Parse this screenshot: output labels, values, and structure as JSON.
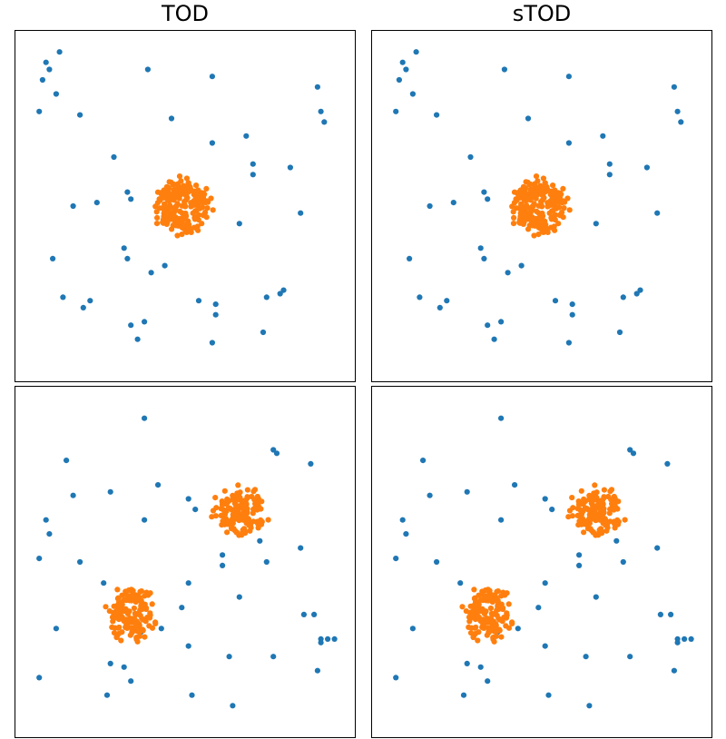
{
  "columns": [
    "TOD",
    "sTOD"
  ],
  "colors": {
    "inlier": "#1f77b4",
    "outlier": "#ff7f0e"
  },
  "chart_data": [
    {
      "type": "scatter",
      "title": "TOD",
      "xlim": [
        0,
        1
      ],
      "ylim": [
        0,
        1
      ],
      "grid": false,
      "outlier_clusters": [
        {
          "center": [
            0.49,
            0.5
          ],
          "radius": 0.095,
          "count": 220,
          "seed": 11
        }
      ],
      "series": [
        {
          "role": "inlier",
          "color": "#1f77b4",
          "x": [
            0.09,
            0.13,
            0.1,
            0.08,
            0.12,
            0.07,
            0.19,
            0.39,
            0.58,
            0.89,
            0.9,
            0.91,
            0.46,
            0.58,
            0.68,
            0.29,
            0.7,
            0.7,
            0.81,
            0.33,
            0.34,
            0.24,
            0.17,
            0.84,
            0.66,
            0.32,
            0.33,
            0.4,
            0.44,
            0.11,
            0.78,
            0.14,
            0.22,
            0.2,
            0.54,
            0.59,
            0.59,
            0.74,
            0.79,
            0.34,
            0.38,
            0.36,
            0.58,
            0.73
          ],
          "y": [
            0.91,
            0.94,
            0.89,
            0.86,
            0.82,
            0.77,
            0.76,
            0.89,
            0.87,
            0.84,
            0.77,
            0.74,
            0.75,
            0.68,
            0.7,
            0.64,
            0.62,
            0.59,
            0.61,
            0.54,
            0.52,
            0.51,
            0.5,
            0.48,
            0.45,
            0.38,
            0.35,
            0.31,
            0.33,
            0.35,
            0.25,
            0.24,
            0.23,
            0.21,
            0.23,
            0.22,
            0.19,
            0.24,
            0.26,
            0.16,
            0.17,
            0.12,
            0.11,
            0.14
          ]
        }
      ]
    },
    {
      "type": "scatter",
      "title": "sTOD",
      "xlim": [
        0,
        1
      ],
      "ylim": [
        0,
        1
      ],
      "grid": false,
      "outlier_clusters": [
        {
          "center": [
            0.49,
            0.5
          ],
          "radius": 0.095,
          "count": 220,
          "seed": 11
        }
      ],
      "series": [
        {
          "role": "inlier",
          "color": "#1f77b4",
          "x": [
            0.09,
            0.13,
            0.1,
            0.08,
            0.12,
            0.07,
            0.19,
            0.39,
            0.58,
            0.89,
            0.9,
            0.91,
            0.46,
            0.58,
            0.68,
            0.29,
            0.7,
            0.7,
            0.81,
            0.33,
            0.34,
            0.24,
            0.17,
            0.84,
            0.66,
            0.32,
            0.33,
            0.4,
            0.44,
            0.11,
            0.78,
            0.14,
            0.22,
            0.2,
            0.54,
            0.59,
            0.59,
            0.74,
            0.79,
            0.34,
            0.38,
            0.36,
            0.58,
            0.73
          ],
          "y": [
            0.91,
            0.94,
            0.89,
            0.86,
            0.82,
            0.77,
            0.76,
            0.89,
            0.87,
            0.84,
            0.77,
            0.74,
            0.75,
            0.68,
            0.7,
            0.64,
            0.62,
            0.59,
            0.61,
            0.54,
            0.52,
            0.51,
            0.5,
            0.48,
            0.45,
            0.38,
            0.35,
            0.31,
            0.33,
            0.35,
            0.25,
            0.24,
            0.23,
            0.21,
            0.23,
            0.22,
            0.19,
            0.24,
            0.26,
            0.16,
            0.17,
            0.12,
            0.11,
            0.14
          ]
        }
      ]
    },
    {
      "type": "scatter",
      "title": "",
      "xlim": [
        0,
        1
      ],
      "ylim": [
        0,
        1
      ],
      "grid": false,
      "outlier_clusters": [
        {
          "center": [
            0.66,
            0.64
          ],
          "radius": 0.09,
          "count": 150,
          "seed": 23
        },
        {
          "center": [
            0.34,
            0.35
          ],
          "radius": 0.09,
          "count": 150,
          "seed": 37
        }
      ],
      "series": [
        {
          "role": "inlier",
          "color": "#1f77b4",
          "x": [
            0.38,
            0.15,
            0.76,
            0.77,
            0.87,
            0.17,
            0.28,
            0.42,
            0.51,
            0.53,
            0.09,
            0.1,
            0.38,
            0.07,
            0.19,
            0.72,
            0.61,
            0.61,
            0.84,
            0.74,
            0.26,
            0.51,
            0.66,
            0.49,
            0.88,
            0.85,
            0.12,
            0.51,
            0.92,
            0.94,
            0.9,
            0.9,
            0.76,
            0.63,
            0.07,
            0.32,
            0.28,
            0.34,
            0.27,
            0.89,
            0.43,
            0.37,
            0.64,
            0.52
          ],
          "y": [
            0.91,
            0.79,
            0.82,
            0.81,
            0.78,
            0.69,
            0.7,
            0.72,
            0.68,
            0.65,
            0.62,
            0.58,
            0.62,
            0.51,
            0.5,
            0.56,
            0.52,
            0.49,
            0.54,
            0.5,
            0.44,
            0.44,
            0.4,
            0.37,
            0.35,
            0.35,
            0.31,
            0.26,
            0.28,
            0.28,
            0.28,
            0.27,
            0.23,
            0.23,
            0.17,
            0.2,
            0.21,
            0.16,
            0.12,
            0.19,
            0.31,
            0.3,
            0.09,
            0.12
          ]
        }
      ]
    },
    {
      "type": "scatter",
      "title": "",
      "xlim": [
        0,
        1
      ],
      "ylim": [
        0,
        1
      ],
      "grid": false,
      "outlier_clusters": [
        {
          "center": [
            0.66,
            0.64
          ],
          "radius": 0.09,
          "count": 150,
          "seed": 23
        },
        {
          "center": [
            0.34,
            0.35
          ],
          "radius": 0.09,
          "count": 150,
          "seed": 37
        }
      ],
      "series": [
        {
          "role": "inlier",
          "color": "#1f77b4",
          "x": [
            0.38,
            0.15,
            0.76,
            0.77,
            0.87,
            0.17,
            0.28,
            0.42,
            0.51,
            0.53,
            0.09,
            0.1,
            0.38,
            0.07,
            0.19,
            0.72,
            0.61,
            0.61,
            0.84,
            0.74,
            0.26,
            0.51,
            0.66,
            0.49,
            0.88,
            0.85,
            0.12,
            0.51,
            0.92,
            0.94,
            0.9,
            0.9,
            0.76,
            0.63,
            0.07,
            0.32,
            0.28,
            0.34,
            0.27,
            0.89,
            0.43,
            0.37,
            0.64,
            0.52
          ],
          "y": [
            0.91,
            0.79,
            0.82,
            0.81,
            0.78,
            0.69,
            0.7,
            0.72,
            0.68,
            0.65,
            0.62,
            0.58,
            0.62,
            0.51,
            0.5,
            0.56,
            0.52,
            0.49,
            0.54,
            0.5,
            0.44,
            0.44,
            0.4,
            0.37,
            0.35,
            0.35,
            0.31,
            0.26,
            0.28,
            0.28,
            0.28,
            0.27,
            0.23,
            0.23,
            0.17,
            0.2,
            0.21,
            0.16,
            0.12,
            0.19,
            0.31,
            0.3,
            0.09,
            0.12
          ]
        }
      ]
    }
  ]
}
